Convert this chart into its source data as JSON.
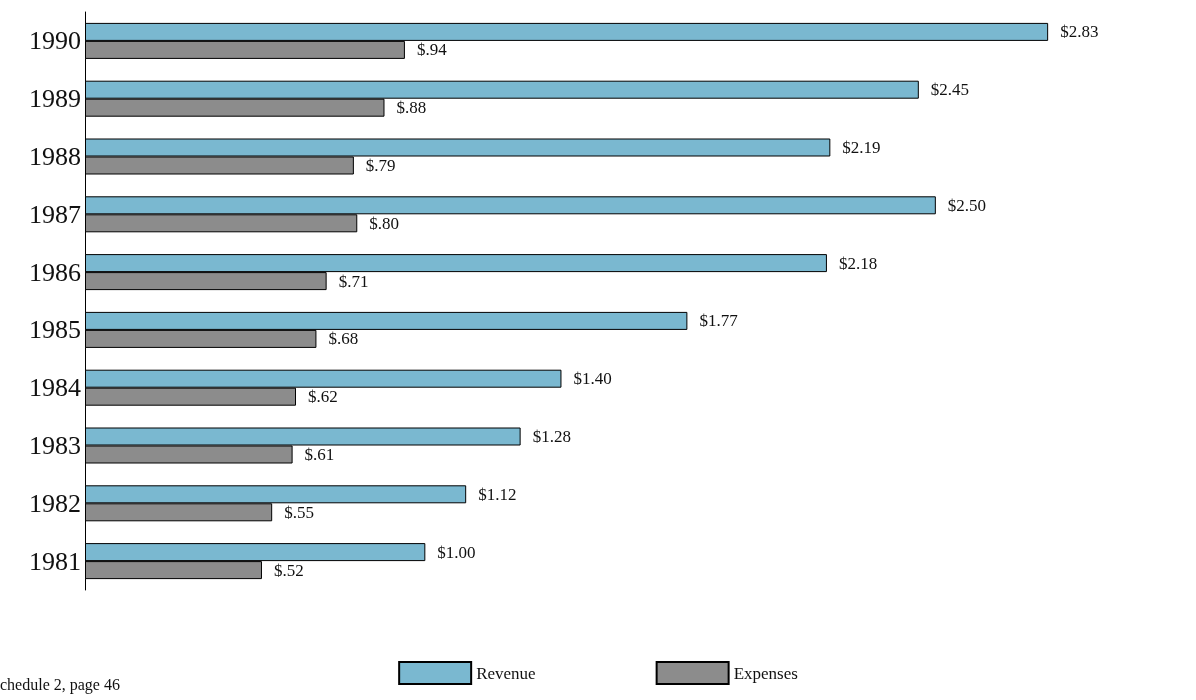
{
  "chart_data": {
    "type": "bar",
    "orientation": "horizontal",
    "categories": [
      "1990",
      "1989",
      "1988",
      "1987",
      "1986",
      "1985",
      "1984",
      "1983",
      "1982",
      "1981"
    ],
    "series": [
      {
        "name": "Revenue",
        "color": "#7ab8d0",
        "values": [
          2.83,
          2.45,
          2.19,
          2.5,
          2.18,
          1.77,
          1.4,
          1.28,
          1.12,
          1.0
        ],
        "value_labels": [
          "$2.83",
          "$2.45",
          "$2.19",
          "$2.50",
          "$2.18",
          "$1.77",
          "$1.40",
          "$1.28",
          "$1.12",
          "$1.00"
        ]
      },
      {
        "name": "Expenses",
        "color": "#8c8c8c",
        "values": [
          0.94,
          0.88,
          0.79,
          0.8,
          0.71,
          0.68,
          0.62,
          0.61,
          0.55,
          0.52
        ],
        "value_labels": [
          "$.94",
          "$.88",
          "$.79",
          "$.80",
          "$.71",
          "$.68",
          "$.62",
          "$.61",
          "$.55",
          "$.52"
        ]
      }
    ],
    "tick_labels": "y",
    "legend": "bottom",
    "annotations": [
      "chedule 2, page 46"
    ]
  }
}
